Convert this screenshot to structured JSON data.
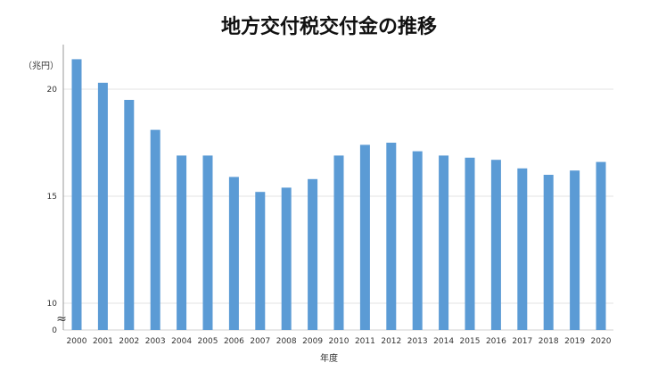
{
  "chart_data": {
    "type": "bar",
    "title": "地方交付税交付金の推移",
    "unit_label": "（兆円）",
    "xlabel": "年度",
    "ylabel": "",
    "y_axis_break": true,
    "break_symbol": "≈",
    "y_ticks": [
      0,
      10,
      15,
      20
    ],
    "ylim_display": [
      10,
      21.7
    ],
    "grid": true,
    "bar_color": "#5b9bd5",
    "categories": [
      "2000",
      "2001",
      "2002",
      "2003",
      "2004",
      "2005",
      "2006",
      "2007",
      "2008",
      "2009",
      "2010",
      "2011",
      "2012",
      "2013",
      "2014",
      "2015",
      "2016",
      "2017",
      "2018",
      "2019",
      "2020"
    ],
    "values": [
      21.4,
      20.3,
      19.5,
      18.1,
      16.9,
      16.9,
      15.9,
      15.2,
      15.4,
      15.8,
      16.9,
      17.4,
      17.5,
      17.1,
      16.9,
      16.8,
      16.7,
      16.3,
      16.0,
      16.2,
      16.6
    ]
  }
}
